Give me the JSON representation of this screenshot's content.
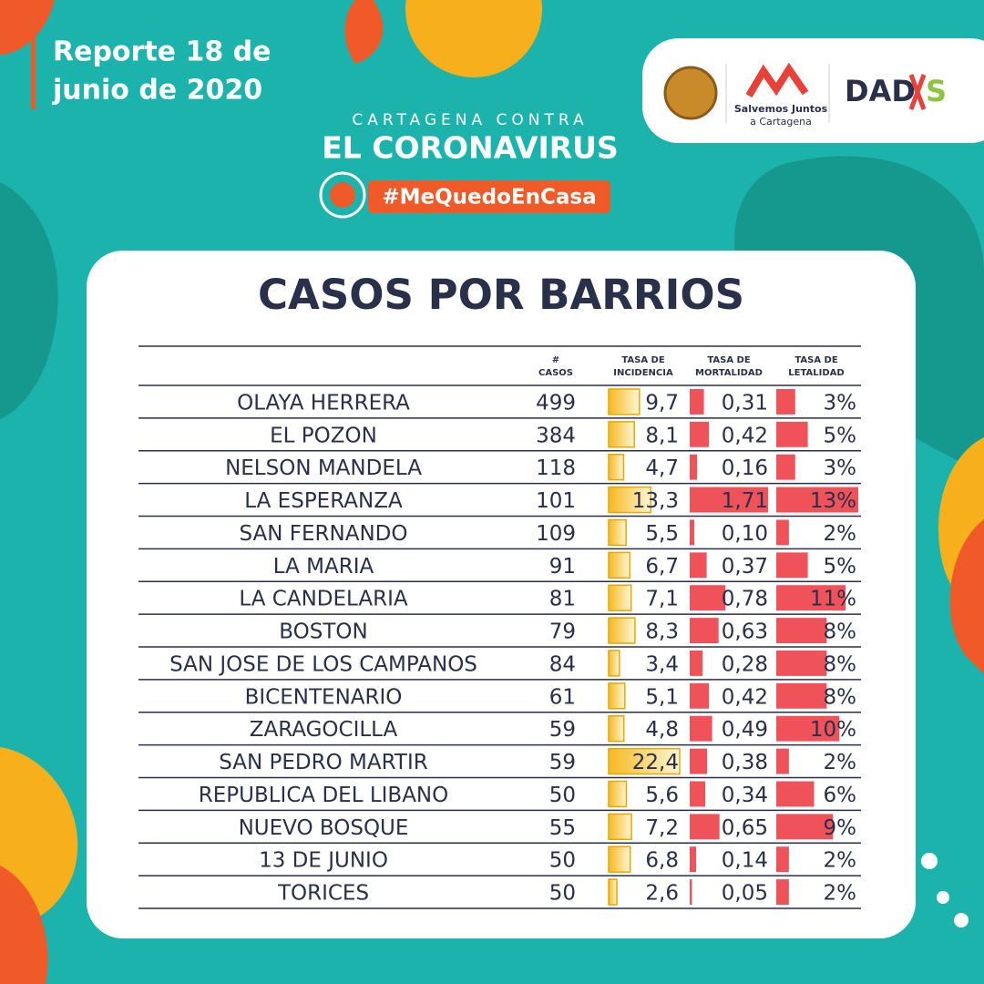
{
  "header": {
    "report": [
      "Reporte 18 de",
      "junio de 2020"
    ],
    "campaign_top": "CARTAGENA CONTRA",
    "campaign_main": "EL CORONAVIRUS",
    "hashtag": "#MeQuedoEnCasa",
    "logos": [
      "Salvemos Juntos",
      "a Cartagena",
      "DAD",
      "S"
    ]
  },
  "table": {
    "title": "CASOS POR BARRIOS",
    "columns": [
      [
        "#",
        "CASOS"
      ],
      [
        "TASA DE",
        "INCIDENCIA"
      ],
      [
        "TASA DE",
        "MORTALIDAD"
      ],
      [
        "TASA DE",
        "LETALIDAD"
      ]
    ],
    "rows": [
      {
        "barrio": "OLAYA HERRERA",
        "casos": 499,
        "incidencia": {
          "value": 9.7,
          "label": "9,7"
        },
        "mortalidad": {
          "value": 0.31,
          "label": "0,31"
        },
        "letalidad": {
          "value": 3,
          "label": "3%"
        }
      },
      {
        "barrio": "EL POZON",
        "casos": 384,
        "incidencia": {
          "value": 8.1,
          "label": "8,1"
        },
        "mortalidad": {
          "value": 0.42,
          "label": "0,42"
        },
        "letalidad": {
          "value": 5,
          "label": "5%"
        }
      },
      {
        "barrio": "NELSON MANDELA",
        "casos": 118,
        "incidencia": {
          "value": 4.7,
          "label": "4,7"
        },
        "mortalidad": {
          "value": 0.16,
          "label": "0,16"
        },
        "letalidad": {
          "value": 3,
          "label": "3%"
        }
      },
      {
        "barrio": "LA ESPERANZA",
        "casos": 101,
        "incidencia": {
          "value": 13.3,
          "label": "13,3"
        },
        "mortalidad": {
          "value": 1.71,
          "label": "1,71"
        },
        "letalidad": {
          "value": 13,
          "label": "13%"
        }
      },
      {
        "barrio": "SAN FERNANDO",
        "casos": 109,
        "incidencia": {
          "value": 5.5,
          "label": "5,5"
        },
        "mortalidad": {
          "value": 0.1,
          "label": "0,10"
        },
        "letalidad": {
          "value": 2,
          "label": "2%"
        }
      },
      {
        "barrio": "LA MARIA",
        "casos": 91,
        "incidencia": {
          "value": 6.7,
          "label": "6,7"
        },
        "mortalidad": {
          "value": 0.37,
          "label": "0,37"
        },
        "letalidad": {
          "value": 5,
          "label": "5%"
        }
      },
      {
        "barrio": "LA CANDELARIA",
        "casos": 81,
        "incidencia": {
          "value": 7.1,
          "label": "7,1"
        },
        "mortalidad": {
          "value": 0.78,
          "label": "0,78"
        },
        "letalidad": {
          "value": 11,
          "label": "11%"
        }
      },
      {
        "barrio": "BOSTON",
        "casos": 79,
        "incidencia": {
          "value": 8.3,
          "label": "8,3"
        },
        "mortalidad": {
          "value": 0.63,
          "label": "0,63"
        },
        "letalidad": {
          "value": 8,
          "label": "8%"
        }
      },
      {
        "barrio": "SAN JOSE DE LOS CAMPANOS",
        "casos": 84,
        "incidencia": {
          "value": 3.4,
          "label": "3,4"
        },
        "mortalidad": {
          "value": 0.28,
          "label": "0,28"
        },
        "letalidad": {
          "value": 8,
          "label": "8%"
        }
      },
      {
        "barrio": "BICENTENARIO",
        "casos": 61,
        "incidencia": {
          "value": 5.1,
          "label": "5,1"
        },
        "mortalidad": {
          "value": 0.42,
          "label": "0,42"
        },
        "letalidad": {
          "value": 8,
          "label": "8%"
        }
      },
      {
        "barrio": "ZARAGOCILLA",
        "casos": 59,
        "incidencia": {
          "value": 4.8,
          "label": "4,8"
        },
        "mortalidad": {
          "value": 0.49,
          "label": "0,49"
        },
        "letalidad": {
          "value": 10,
          "label": "10%"
        }
      },
      {
        "barrio": "SAN PEDRO MARTIR",
        "casos": 59,
        "incidencia": {
          "value": 22.4,
          "label": "22,4"
        },
        "mortalidad": {
          "value": 0.38,
          "label": "0,38"
        },
        "letalidad": {
          "value": 2,
          "label": "2%"
        }
      },
      {
        "barrio": "REPUBLICA DEL LIBANO",
        "casos": 50,
        "incidencia": {
          "value": 5.6,
          "label": "5,6"
        },
        "mortalidad": {
          "value": 0.34,
          "label": "0,34"
        },
        "letalidad": {
          "value": 6,
          "label": "6%"
        }
      },
      {
        "barrio": "NUEVO BOSQUE",
        "casos": 55,
        "incidencia": {
          "value": 7.2,
          "label": "7,2"
        },
        "mortalidad": {
          "value": 0.65,
          "label": "0,65"
        },
        "letalidad": {
          "value": 9,
          "label": "9%"
        }
      },
      {
        "barrio": "13 DE JUNIO",
        "casos": 50,
        "incidencia": {
          "value": 6.8,
          "label": "6,8"
        },
        "mortalidad": {
          "value": 0.14,
          "label": "0,14"
        },
        "letalidad": {
          "value": 2,
          "label": "2%"
        }
      },
      {
        "barrio": "TORICES",
        "casos": 50,
        "incidencia": {
          "value": 2.6,
          "label": "2,6"
        },
        "mortalidad": {
          "value": 0.05,
          "label": "0,05"
        },
        "letalidad": {
          "value": 2,
          "label": "2%"
        }
      }
    ]
  }
}
